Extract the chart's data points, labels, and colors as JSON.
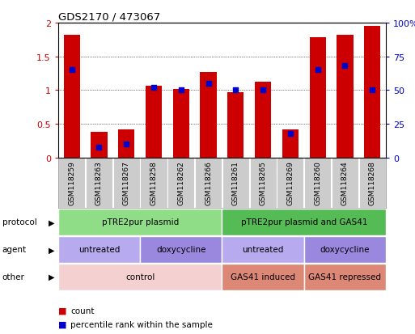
{
  "title": "GDS2170 / 473067",
  "samples": [
    "GSM118259",
    "GSM118263",
    "GSM118267",
    "GSM118258",
    "GSM118262",
    "GSM118266",
    "GSM118261",
    "GSM118265",
    "GSM118269",
    "GSM118260",
    "GSM118264",
    "GSM118268"
  ],
  "count_values": [
    1.82,
    0.38,
    0.42,
    1.07,
    1.02,
    1.27,
    0.97,
    1.12,
    0.42,
    1.78,
    1.82,
    1.95
  ],
  "percentile_values": [
    65,
    8,
    10,
    52,
    50,
    55,
    50,
    50,
    18,
    65,
    68,
    50
  ],
  "ylim": [
    0,
    2.0
  ],
  "y2lim": [
    0,
    100
  ],
  "yticks": [
    0,
    0.5,
    1.0,
    1.5,
    2.0
  ],
  "y2ticks": [
    0,
    25,
    50,
    75,
    100
  ],
  "ytick_labels": [
    "0",
    "0.5",
    "1",
    "1.5",
    "2"
  ],
  "y2tick_labels": [
    "0",
    "25",
    "50",
    "75",
    "100%"
  ],
  "bar_color": "#cc0000",
  "dot_color": "#0000cc",
  "protocol_groups": [
    {
      "label": "pTRE2pur plasmid",
      "start": 0,
      "end": 6,
      "color": "#90dd88"
    },
    {
      "label": "pTRE2pur plasmid and GAS41",
      "start": 6,
      "end": 12,
      "color": "#55bb55"
    }
  ],
  "agent_groups": [
    {
      "label": "untreated",
      "start": 0,
      "end": 3,
      "color": "#b8aaee"
    },
    {
      "label": "doxycycline",
      "start": 3,
      "end": 6,
      "color": "#9988dd"
    },
    {
      "label": "untreated",
      "start": 6,
      "end": 9,
      "color": "#b8aaee"
    },
    {
      "label": "doxycycline",
      "start": 9,
      "end": 12,
      "color": "#9988dd"
    }
  ],
  "other_groups": [
    {
      "label": "control",
      "start": 0,
      "end": 6,
      "color": "#f5d0d0"
    },
    {
      "label": "GAS41 induced",
      "start": 6,
      "end": 9,
      "color": "#dd8877"
    },
    {
      "label": "GAS41 repressed",
      "start": 9,
      "end": 12,
      "color": "#dd8877"
    }
  ],
  "row_labels": [
    "protocol",
    "agent",
    "other"
  ],
  "legend_count_label": "count",
  "legend_pct_label": "percentile rank within the sample",
  "tick_color_left": "#cc0000",
  "tick_color_right": "#0000cc",
  "bar_width": 0.6,
  "xtick_bg_color": "#cccccc",
  "border_color": "#000000"
}
